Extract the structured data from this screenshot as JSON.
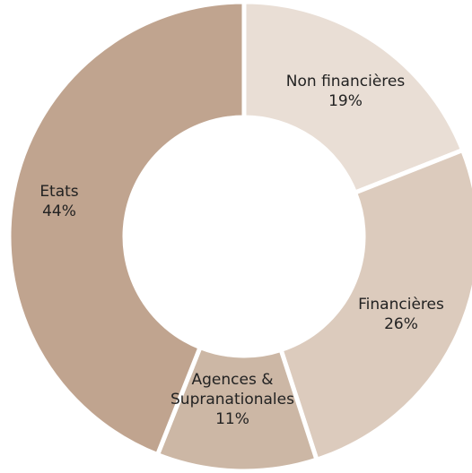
{
  "chart_data": {
    "type": "pie",
    "variant": "donut",
    "title": "",
    "start_angle_deg": 0,
    "direction": "clockwise",
    "slices": [
      {
        "label": "Non financières",
        "value": 19,
        "value_label": "19%",
        "color": "#e9ded5"
      },
      {
        "label": "Financières",
        "value": 26,
        "value_label": "26%",
        "color": "#dccbbd"
      },
      {
        "label": "Agences & Supranationales",
        "label_lines": [
          "Agences &",
          "Supranationales"
        ],
        "value": 11,
        "value_label": "11%",
        "color": "#ccb7a5"
      },
      {
        "label": "Etats",
        "value": 44,
        "value_label": "44%",
        "color": "#c0a48f"
      }
    ]
  }
}
